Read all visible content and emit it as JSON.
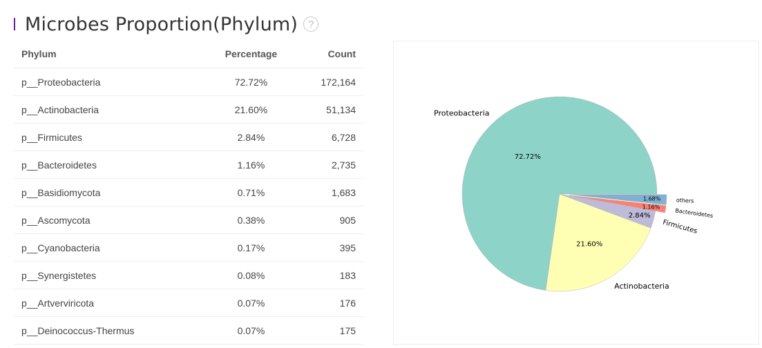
{
  "header": {
    "title": "Microbes Proportion(Phylum)",
    "help_icon": "?"
  },
  "table": {
    "columns": [
      "Phylum",
      "Percentage",
      "Count"
    ],
    "rows": [
      {
        "phylum": "p__Proteobacteria",
        "percentage": "72.72%",
        "count": "172,164"
      },
      {
        "phylum": "p__Actinobacteria",
        "percentage": "21.60%",
        "count": "51,134"
      },
      {
        "phylum": "p__Firmicutes",
        "percentage": "2.84%",
        "count": "6,728"
      },
      {
        "phylum": "p__Bacteroidetes",
        "percentage": "1.16%",
        "count": "2,735"
      },
      {
        "phylum": "p__Basidiomycota",
        "percentage": "0.71%",
        "count": "1,683"
      },
      {
        "phylum": "p__Ascomycota",
        "percentage": "0.38%",
        "count": "905"
      },
      {
        "phylum": "p__Cyanobacteria",
        "percentage": "0.17%",
        "count": "395"
      },
      {
        "phylum": "p__Synergistetes",
        "percentage": "0.08%",
        "count": "183"
      },
      {
        "phylum": "p__Artverviricota",
        "percentage": "0.07%",
        "count": "176"
      },
      {
        "phylum": "p__Deinococcus-Thermus",
        "percentage": "0.07%",
        "count": "175"
      }
    ]
  },
  "chart_data": {
    "type": "pie",
    "slices": [
      {
        "label": "Proteobacteria",
        "value": 72.72,
        "value_label": "72.72%",
        "color": "#8dd3c7",
        "explode": false
      },
      {
        "label": "Actinobacteria",
        "value": 21.6,
        "value_label": "21.60%",
        "color": "#ffffb3",
        "explode": false
      },
      {
        "label": "Firmicutes",
        "value": 2.84,
        "value_label": "2.84%",
        "color": "#bebada",
        "explode": false
      },
      {
        "label": "Bacteroidetes",
        "value": 1.16,
        "value_label": "1.16%",
        "color": "#fb8072",
        "explode": true
      },
      {
        "label": "others",
        "value": 1.68,
        "value_label": "1.68%",
        "color": "#80b1d3",
        "explode": true
      }
    ],
    "start_angle_deg": 0,
    "direction": "counterclockwise"
  }
}
